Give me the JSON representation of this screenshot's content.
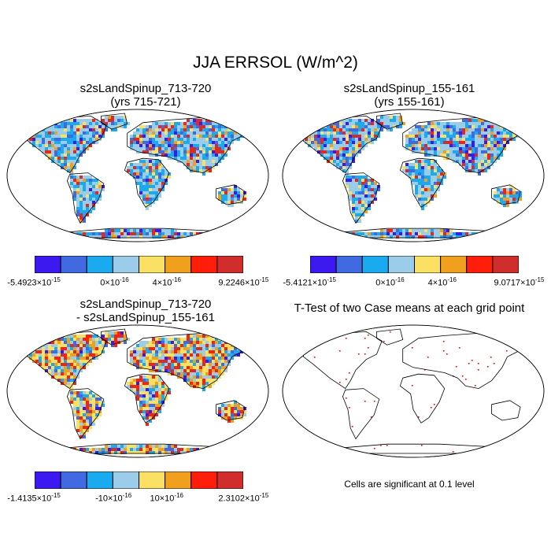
{
  "figure": {
    "title": "JJA ERRSOL (W/m^2)"
  },
  "panels": [
    {
      "title_line1": "s2sLandSpinup_713-720",
      "title_line2": "(yrs 715-721)"
    },
    {
      "title_line1": "s2sLandSpinup_155-161",
      "title_line2": "(yrs 155-161)"
    },
    {
      "title_line1": "s2sLandSpinup_713-720",
      "title_line2": "- s2sLandSpinup_155-161"
    },
    {
      "title_line1": "T-Test of two Case means at each grid point",
      "note": "Cells are significant at 0.1 level"
    }
  ],
  "colorbars": [
    {
      "colors": [
        "#3c19f0",
        "#4169e1",
        "#19aaf0",
        "#9bcdeb",
        "#fae164",
        "#f0a01e",
        "#ff1e0a",
        "#d22d2d"
      ],
      "labels": [
        {
          "mant": "-5.4923",
          "exp": "-15"
        },
        {
          "mant": "0",
          "exp": "-16"
        },
        {
          "mant": "4",
          "exp": "-16"
        },
        {
          "mant": "9.2246",
          "exp": "-15"
        }
      ]
    },
    {
      "colors": [
        "#3c19f0",
        "#4169e1",
        "#19aaf0",
        "#9bcdeb",
        "#fae164",
        "#f0a01e",
        "#ff1e0a",
        "#d22d2d"
      ],
      "labels": [
        {
          "mant": "-5.4121",
          "exp": "-15"
        },
        {
          "mant": "0",
          "exp": "-16"
        },
        {
          "mant": "4",
          "exp": "-16"
        },
        {
          "mant": "9.0717",
          "exp": "-15"
        }
      ]
    },
    {
      "colors": [
        "#3c19f0",
        "#4169e1",
        "#19aaf0",
        "#9bcdeb",
        "#fae164",
        "#f0a01e",
        "#ff1e0a",
        "#d22d2d"
      ],
      "labels": [
        {
          "mant": "-1.4135",
          "exp": "-15"
        },
        {
          "mant": "-10",
          "exp": "-16"
        },
        {
          "mant": "10",
          "exp": "-16"
        },
        {
          "mant": "2.3102",
          "exp": "-15"
        }
      ]
    }
  ],
  "chart_data": {
    "type": "heatmap",
    "projection": "Robinson",
    "variable": "ERRSOL",
    "units": "W/m^2",
    "season": "JJA",
    "maps": [
      {
        "panel": 1,
        "range": [
          -5.4923e-15,
          9.2246e-15
        ]
      },
      {
        "panel": 2,
        "range": [
          -5.4121e-15,
          9.0717e-15
        ]
      },
      {
        "panel": 3,
        "range": [
          -1.4135e-15,
          2.3102e-15
        ]
      },
      {
        "panel": 4,
        "markers": "significant cells at 0.1 level",
        "marker_color": "#ff0000"
      }
    ]
  }
}
